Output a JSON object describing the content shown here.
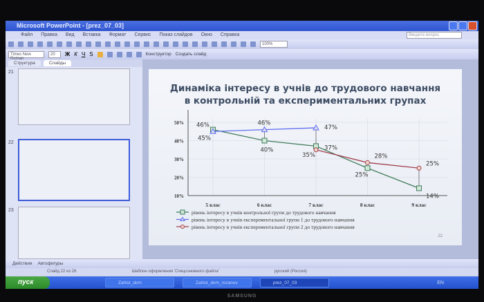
{
  "window": {
    "title": "Microsoft PowerPoint - [prez_07_03]",
    "help_placeholder": "Введите вопрос"
  },
  "menu": [
    "Файл",
    "Правка",
    "Вид",
    "Вставка",
    "Формат",
    "Сервис",
    "Показ слайдов",
    "Окно",
    "Справка"
  ],
  "toolbar": {
    "zoom": "100%",
    "font": "Times New Roman",
    "font_size": "20",
    "bold": "Ж",
    "italic": "К",
    "underline": "Ч",
    "shadow": "S",
    "designer": "Конструктор",
    "new_slide": "Создать слайд"
  },
  "left_panel": {
    "tabs": [
      "Структура",
      "Слайды"
    ],
    "slides": [
      {
        "number": "21"
      },
      {
        "number": "22"
      },
      {
        "number": "23"
      }
    ]
  },
  "slide": {
    "title_line1": "Динаміка інтересу в учнів до трудового навчання",
    "title_line2": "в контрольній та експериментальних групах",
    "number": "22"
  },
  "chart_data": {
    "type": "line",
    "categories": [
      "5 клас",
      "6 клас",
      "7 клас",
      "8 клас",
      "9 клас"
    ],
    "ylim": [
      10,
      50
    ],
    "yticks": [
      "10%",
      "20%",
      "30%",
      "40%",
      "50%"
    ],
    "series": [
      {
        "name": "рівень інтересу в учнів контрольної групи до трудового навчання",
        "values": [
          46,
          40,
          37,
          25,
          14
        ],
        "labels": [
          "46%",
          "40%",
          "37%",
          "25%",
          "14%"
        ],
        "color": "#3f7a5a",
        "marker": "square"
      },
      {
        "name": "рівень інтересу в учнів експерементальної групи 1 до трудового навчання",
        "values": [
          45,
          46,
          47,
          null,
          null
        ],
        "labels": [
          "45%",
          "46%",
          "47%",
          "",
          ""
        ],
        "color": "#5f6ff0",
        "marker": "triangle"
      },
      {
        "name": "рівень інтересу в учнів експерементальної групи 2 до трудового навчання",
        "values": [
          null,
          null,
          35,
          28,
          25
        ],
        "labels": [
          "",
          "",
          "35%",
          "28%",
          "25%"
        ],
        "color": "#a04050",
        "marker": "circle"
      }
    ]
  },
  "drawing_toolbar": {
    "actions": "Действия",
    "autoshapes": "Автофигуры"
  },
  "status": {
    "slide": "Слайд 22 из 26",
    "template": "Шаблон оформления 'Спецсоновного файла'",
    "language": "русский (Россия)"
  },
  "taskbar": {
    "start": "пуск",
    "tasks": [
      "Zahist_dom",
      "Zahist_dom_rozanov",
      "prez_07_03"
    ],
    "lang": "EN"
  },
  "monitor": {
    "brand": "SAMSUNG"
  }
}
